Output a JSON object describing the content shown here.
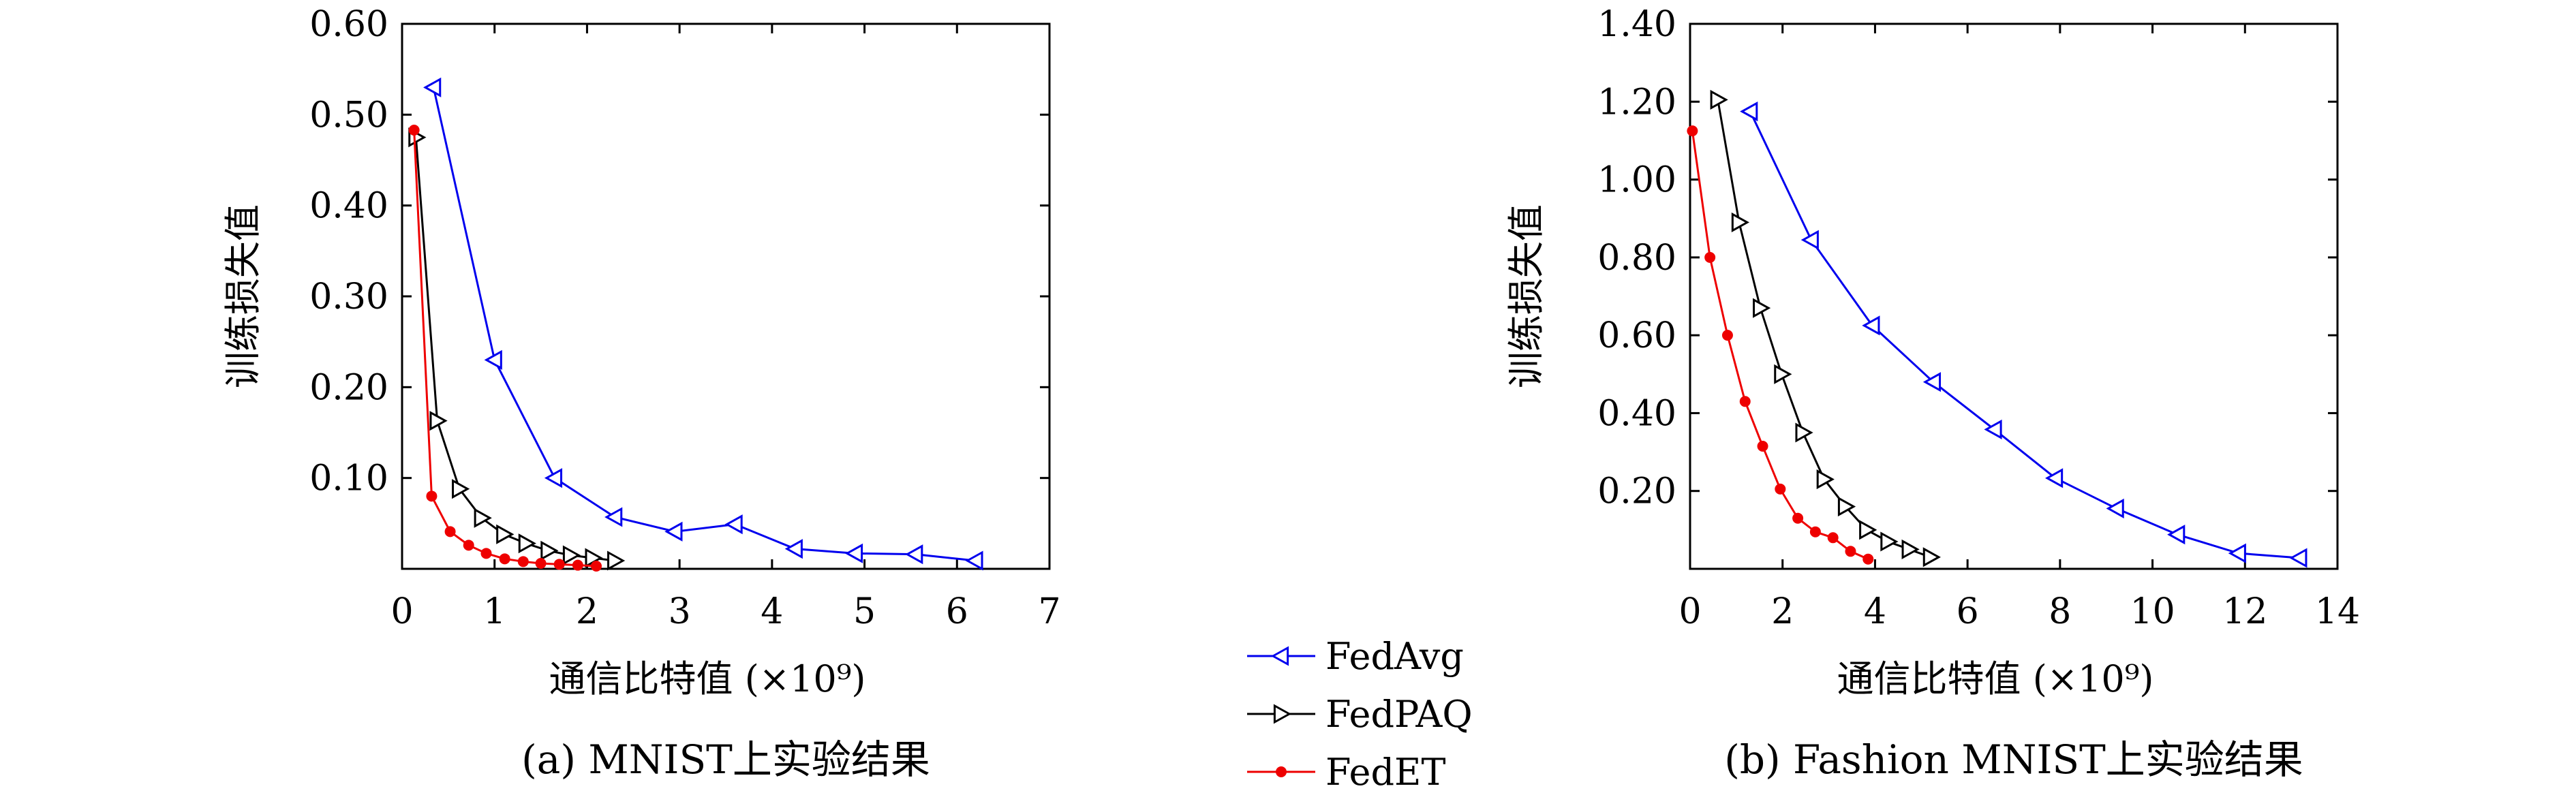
{
  "chart_data": [
    {
      "type": "line",
      "caption": "(a) MNIST上实验结果",
      "xlabel": "通信比特值 (×10⁹)",
      "ylabel": "训练损失值",
      "xlim": [
        0,
        7
      ],
      "ylim": [
        0,
        0.6
      ],
      "xticks": [
        "0",
        "1",
        "2",
        "3",
        "4",
        "5",
        "6",
        "7"
      ],
      "yticks": [
        "0.10",
        "0.20",
        "0.30",
        "0.40",
        "0.50",
        "0.60"
      ],
      "series": [
        {
          "name": "FedAvg",
          "x": [
            0.34,
            1.0,
            1.65,
            2.3,
            2.95,
            3.6,
            4.25,
            4.9,
            5.55,
            6.2
          ],
          "y": [
            0.53,
            0.23,
            0.1,
            0.057,
            0.041,
            0.049,
            0.022,
            0.017,
            0.016,
            0.009
          ]
        },
        {
          "name": "FedPAQ",
          "x": [
            0.15,
            0.38,
            0.62,
            0.86,
            1.1,
            1.34,
            1.58,
            1.82,
            2.06,
            2.3
          ],
          "y": [
            0.475,
            0.163,
            0.088,
            0.056,
            0.038,
            0.028,
            0.02,
            0.015,
            0.012,
            0.009
          ]
        },
        {
          "name": "FedET",
          "x": [
            0.13,
            0.32,
            0.52,
            0.72,
            0.91,
            1.11,
            1.31,
            1.5,
            1.7,
            1.9,
            2.1
          ],
          "y": [
            0.483,
            0.08,
            0.041,
            0.026,
            0.017,
            0.011,
            0.008,
            0.006,
            0.005,
            0.004,
            0.003
          ]
        }
      ]
    },
    {
      "type": "line",
      "caption": "(b) Fashion MNIST上实验结果",
      "xlabel": "通信比特值 (×10⁹)",
      "ylabel": "训练损失值",
      "xlim": [
        0,
        14
      ],
      "ylim": [
        0,
        1.4
      ],
      "xticks": [
        "0",
        "2",
        "4",
        "6",
        "8",
        "10",
        "12",
        "14"
      ],
      "yticks": [
        "0.20",
        "0.40",
        "0.60",
        "0.80",
        "1.00",
        "1.20",
        "1.40"
      ],
      "series": [
        {
          "name": "FedAvg",
          "x": [
            1.3,
            2.62,
            3.94,
            5.26,
            6.58,
            7.9,
            9.22,
            10.54,
            11.86,
            13.18
          ],
          "y": [
            1.175,
            0.845,
            0.625,
            0.48,
            0.358,
            0.233,
            0.155,
            0.088,
            0.04,
            0.028
          ]
        },
        {
          "name": "FedPAQ",
          "x": [
            0.6,
            1.06,
            1.52,
            1.98,
            2.44,
            2.9,
            3.36,
            3.82,
            4.28,
            4.74,
            5.2
          ],
          "y": [
            1.205,
            0.89,
            0.67,
            0.5,
            0.35,
            0.23,
            0.16,
            0.1,
            0.07,
            0.05,
            0.03
          ]
        },
        {
          "name": "FedET",
          "x": [
            0.05,
            0.43,
            0.81,
            1.19,
            1.57,
            1.95,
            2.33,
            2.71,
            3.09,
            3.47,
            3.85
          ],
          "y": [
            1.125,
            0.8,
            0.6,
            0.43,
            0.315,
            0.205,
            0.13,
            0.095,
            0.08,
            0.045,
            0.025
          ]
        }
      ]
    }
  ],
  "legend": [
    {
      "name": "FedAvg",
      "color": "#0000ee",
      "marker": "triangle-left"
    },
    {
      "name": "FedPAQ",
      "color": "#000000",
      "marker": "triangle-right"
    },
    {
      "name": "FedET",
      "color": "#ee0000",
      "marker": "asterisk"
    }
  ]
}
